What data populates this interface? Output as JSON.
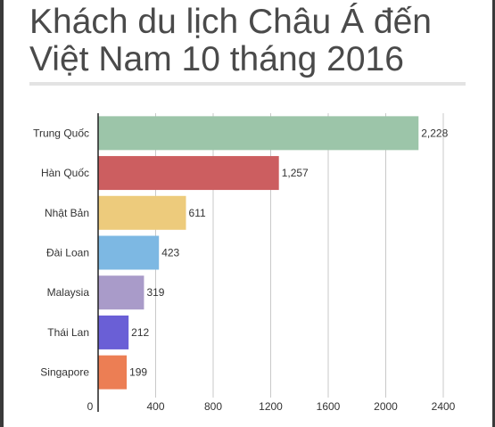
{
  "page": {
    "title_line1": "Khách du lịch Châu Á đến",
    "title_line2": "Việt Nam 10 tháng 2016"
  },
  "chart_data": {
    "type": "bar",
    "orientation": "horizontal",
    "categories": [
      "Trung Quốc",
      "Hàn Quốc",
      "Nhật Bản",
      "Đài Loan",
      "Malaysia",
      "Thái Lan",
      "Singapore"
    ],
    "values": [
      2228,
      1257,
      611,
      423,
      319,
      212,
      199
    ],
    "value_labels": [
      "2,228",
      "1,257",
      "611",
      "423",
      "319",
      "212",
      "199"
    ],
    "colors": [
      "#9cc5a9",
      "#cc5e60",
      "#edcb7c",
      "#7db8e3",
      "#a99bc9",
      "#6a5fd6",
      "#ec7e54"
    ],
    "xlim": [
      0,
      2400
    ],
    "xticks": [
      0,
      400,
      800,
      1200,
      1600,
      2000,
      2400
    ],
    "xtick_labels": [
      "0",
      "400",
      "800",
      "1200",
      "1600",
      "2000",
      "2400"
    ],
    "grid": true,
    "legend": false
  }
}
